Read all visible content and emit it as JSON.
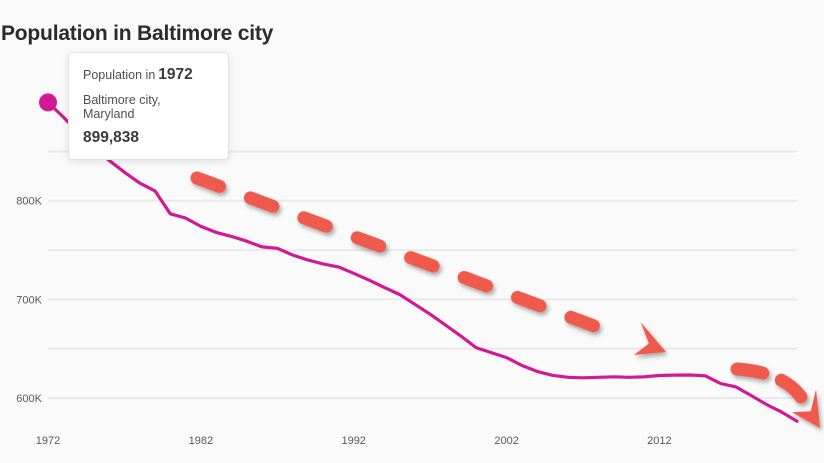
{
  "header": {
    "title": "Population in Baltimore city"
  },
  "tooltip": {
    "label_prefix": "Population in",
    "year": "1972",
    "location": "Baltimore city, Maryland",
    "value": "899,838"
  },
  "colors": {
    "background": "#fafafa",
    "gridline": "#e9e9e9",
    "series": "#d31895",
    "annotation_arrow": "#ef5a4d",
    "tick_text": "#585858"
  },
  "chart_data": {
    "type": "line",
    "title": "Population in Baltimore city",
    "xlabel": "",
    "ylabel": "",
    "legend": "none",
    "grid": "horizontal",
    "xlim": [
      1972,
      2021
    ],
    "ylim": [
      550000,
      905000
    ],
    "x_ticks": [
      {
        "year": 1972,
        "label": "1972"
      },
      {
        "year": 1982,
        "label": "1982"
      },
      {
        "year": 1992,
        "label": "1992"
      },
      {
        "year": 2002,
        "label": "2002"
      },
      {
        "year": 2012,
        "label": "2012"
      }
    ],
    "y_ticks": [
      {
        "value": 800000,
        "label": "800K"
      },
      {
        "value": 700000,
        "label": "700K"
      },
      {
        "value": 600000,
        "label": "600K"
      }
    ],
    "y_gridlines": [
      850000,
      800000,
      750000,
      700000,
      650000,
      600000
    ],
    "series": [
      {
        "name": "Population, Baltimore city, Maryland",
        "x": [
          1972,
          1973,
          1974,
          1975,
          1976,
          1977,
          1978,
          1979,
          1980,
          1981,
          1982,
          1983,
          1984,
          1985,
          1986,
          1987,
          1988,
          1989,
          1990,
          1991,
          1992,
          1993,
          1994,
          1995,
          1996,
          1997,
          1998,
          1999,
          2000,
          2001,
          2002,
          2003,
          2004,
          2005,
          2006,
          2007,
          2008,
          2009,
          2010,
          2011,
          2012,
          2013,
          2014,
          2015,
          2016,
          2017,
          2018,
          2019,
          2020,
          2021
        ],
        "values": [
          899838,
          885000,
          869000,
          853000,
          841000,
          829000,
          818000,
          810000,
          786775,
          782500,
          774000,
          768000,
          763900,
          759000,
          753200,
          751800,
          745000,
          740000,
          736014,
          733000,
          726500,
          719600,
          712200,
          705000,
          695000,
          685000,
          674000,
          663000,
          651154,
          646000,
          641000,
          633000,
          627000,
          623000,
          621000,
          620500,
          621000,
          621500,
          620961,
          621500,
          622800,
          623200,
          623300,
          622500,
          614700,
          611300,
          602500,
          593500,
          585708,
          576498
        ]
      }
    ],
    "highlight_point": {
      "year": 1972,
      "value": 899838
    },
    "annotations": [
      "thick dashed red arrow sloping down-right across the chart (from ~1981/820K to ~2012/655K)",
      "short curved dashed red arrow pointing down-right at the end of the line (2017-2021)"
    ]
  }
}
